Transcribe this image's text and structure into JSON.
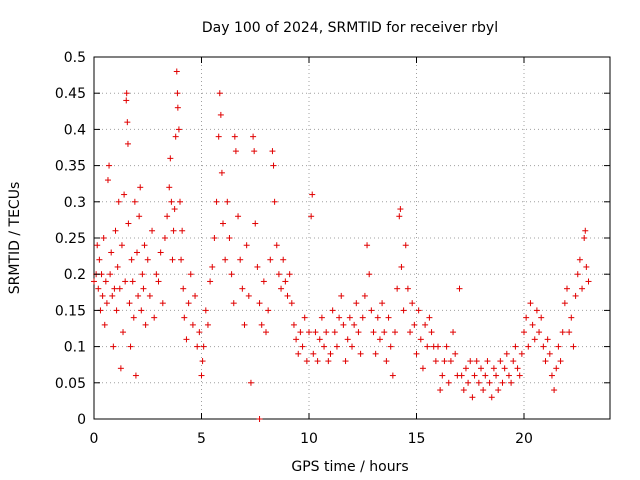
{
  "chart_data": {
    "type": "scatter",
    "title": "Day 100 of 2024, SRMTID for receiver rbyl",
    "xlabel": "GPS time / hours",
    "ylabel": "SRMTID / TECUs",
    "xlim": [
      0,
      24
    ],
    "ylim": [
      0,
      0.5
    ],
    "xticks": [
      0,
      5,
      10,
      15,
      20
    ],
    "yticks": [
      0,
      0.05,
      0.1,
      0.15,
      0.2,
      0.25,
      0.3,
      0.35,
      0.4,
      0.45,
      0.5
    ],
    "grid": true,
    "marker": "+",
    "color": "#e00000",
    "series": [
      {
        "name": "SRMTID",
        "points": [
          [
            0.0,
            0.19
          ],
          [
            0.1,
            0.2
          ],
          [
            0.15,
            0.24
          ],
          [
            0.2,
            0.18
          ],
          [
            0.25,
            0.22
          ],
          [
            0.3,
            0.15
          ],
          [
            0.35,
            0.2
          ],
          [
            0.4,
            0.17
          ],
          [
            0.45,
            0.25
          ],
          [
            0.5,
            0.13
          ],
          [
            0.55,
            0.19
          ],
          [
            0.6,
            0.16
          ],
          [
            0.65,
            0.33
          ],
          [
            0.7,
            0.35
          ],
          [
            0.75,
            0.2
          ],
          [
            0.8,
            0.23
          ],
          [
            0.85,
            0.17
          ],
          [
            0.9,
            0.1
          ],
          [
            0.95,
            0.18
          ],
          [
            1.0,
            0.26
          ],
          [
            1.05,
            0.15
          ],
          [
            1.1,
            0.21
          ],
          [
            1.15,
            0.3
          ],
          [
            1.2,
            0.18
          ],
          [
            1.25,
            0.07
          ],
          [
            1.3,
            0.24
          ],
          [
            1.35,
            0.12
          ],
          [
            1.4,
            0.31
          ],
          [
            1.45,
            0.19
          ],
          [
            1.5,
            0.44
          ],
          [
            1.52,
            0.45
          ],
          [
            1.55,
            0.41
          ],
          [
            1.58,
            0.38
          ],
          [
            1.6,
            0.27
          ],
          [
            1.65,
            0.16
          ],
          [
            1.7,
            0.1
          ],
          [
            1.75,
            0.22
          ],
          [
            1.8,
            0.19
          ],
          [
            1.85,
            0.14
          ],
          [
            1.9,
            0.3
          ],
          [
            1.95,
            0.06
          ],
          [
            2.0,
            0.23
          ],
          [
            2.05,
            0.17
          ],
          [
            2.1,
            0.28
          ],
          [
            2.15,
            0.32
          ],
          [
            2.2,
            0.15
          ],
          [
            2.25,
            0.2
          ],
          [
            2.3,
            0.18
          ],
          [
            2.35,
            0.24
          ],
          [
            2.4,
            0.13
          ],
          [
            2.5,
            0.22
          ],
          [
            2.6,
            0.17
          ],
          [
            2.7,
            0.26
          ],
          [
            2.8,
            0.14
          ],
          [
            2.9,
            0.2
          ],
          [
            3.0,
            0.19
          ],
          [
            3.1,
            0.23
          ],
          [
            3.2,
            0.16
          ],
          [
            3.3,
            0.25
          ],
          [
            3.4,
            0.28
          ],
          [
            3.5,
            0.32
          ],
          [
            3.55,
            0.36
          ],
          [
            3.6,
            0.3
          ],
          [
            3.65,
            0.22
          ],
          [
            3.7,
            0.26
          ],
          [
            3.75,
            0.29
          ],
          [
            3.8,
            0.39
          ],
          [
            3.85,
            0.48
          ],
          [
            3.88,
            0.45
          ],
          [
            3.9,
            0.43
          ],
          [
            3.95,
            0.4
          ],
          [
            4.0,
            0.3
          ],
          [
            4.05,
            0.22
          ],
          [
            4.1,
            0.26
          ],
          [
            4.15,
            0.18
          ],
          [
            4.2,
            0.14
          ],
          [
            4.3,
            0.11
          ],
          [
            4.4,
            0.16
          ],
          [
            4.5,
            0.2
          ],
          [
            4.6,
            0.13
          ],
          [
            4.7,
            0.17
          ],
          [
            4.8,
            0.1
          ],
          [
            4.9,
            0.12
          ],
          [
            5.0,
            0.06
          ],
          [
            5.05,
            0.08
          ],
          [
            5.1,
            0.1
          ],
          [
            5.2,
            0.15
          ],
          [
            5.3,
            0.13
          ],
          [
            5.4,
            0.19
          ],
          [
            5.5,
            0.21
          ],
          [
            5.6,
            0.25
          ],
          [
            5.7,
            0.3
          ],
          [
            5.8,
            0.39
          ],
          [
            5.85,
            0.45
          ],
          [
            5.9,
            0.42
          ],
          [
            5.95,
            0.34
          ],
          [
            6.0,
            0.27
          ],
          [
            6.1,
            0.22
          ],
          [
            6.2,
            0.3
          ],
          [
            6.3,
            0.25
          ],
          [
            6.4,
            0.2
          ],
          [
            6.5,
            0.16
          ],
          [
            6.55,
            0.39
          ],
          [
            6.6,
            0.37
          ],
          [
            6.7,
            0.28
          ],
          [
            6.8,
            0.22
          ],
          [
            6.9,
            0.18
          ],
          [
            7.0,
            0.13
          ],
          [
            7.1,
            0.24
          ],
          [
            7.2,
            0.17
          ],
          [
            7.3,
            0.05
          ],
          [
            7.4,
            0.39
          ],
          [
            7.45,
            0.37
          ],
          [
            7.5,
            0.27
          ],
          [
            7.6,
            0.21
          ],
          [
            7.7,
            0.16
          ],
          [
            7.8,
            0.13
          ],
          [
            7.9,
            0.19
          ],
          [
            8.0,
            0.12
          ],
          [
            8.1,
            0.15
          ],
          [
            8.2,
            0.22
          ],
          [
            8.3,
            0.37
          ],
          [
            8.35,
            0.35
          ],
          [
            8.4,
            0.3
          ],
          [
            8.5,
            0.24
          ],
          [
            8.6,
            0.2
          ],
          [
            8.7,
            0.18
          ],
          [
            8.8,
            0.22
          ],
          [
            8.9,
            0.19
          ],
          [
            9.0,
            0.17
          ],
          [
            9.1,
            0.2
          ],
          [
            9.2,
            0.16
          ],
          [
            9.3,
            0.13
          ],
          [
            9.4,
            0.11
          ],
          [
            9.5,
            0.09
          ],
          [
            9.6,
            0.12
          ],
          [
            9.7,
            0.1
          ],
          [
            9.8,
            0.14
          ],
          [
            9.9,
            0.08
          ],
          [
            10.0,
            0.12
          ],
          [
            10.1,
            0.28
          ],
          [
            10.15,
            0.31
          ],
          [
            10.2,
            0.09
          ],
          [
            10.3,
            0.12
          ],
          [
            10.4,
            0.08
          ],
          [
            10.5,
            0.11
          ],
          [
            10.6,
            0.14
          ],
          [
            10.7,
            0.1
          ],
          [
            10.8,
            0.12
          ],
          [
            10.9,
            0.08
          ],
          [
            11.0,
            0.09
          ],
          [
            11.1,
            0.15
          ],
          [
            11.2,
            0.12
          ],
          [
            11.3,
            0.1
          ],
          [
            11.4,
            0.14
          ],
          [
            11.5,
            0.17
          ],
          [
            11.6,
            0.13
          ],
          [
            11.7,
            0.08
          ],
          [
            11.8,
            0.11
          ],
          [
            11.9,
            0.14
          ],
          [
            12.0,
            0.1
          ],
          [
            12.1,
            0.13
          ],
          [
            12.2,
            0.16
          ],
          [
            12.3,
            0.12
          ],
          [
            12.4,
            0.09
          ],
          [
            12.5,
            0.14
          ],
          [
            12.6,
            0.17
          ],
          [
            12.7,
            0.24
          ],
          [
            12.8,
            0.2
          ],
          [
            12.9,
            0.15
          ],
          [
            13.0,
            0.12
          ],
          [
            13.1,
            0.09
          ],
          [
            13.2,
            0.14
          ],
          [
            13.3,
            0.11
          ],
          [
            13.4,
            0.16
          ],
          [
            13.5,
            0.12
          ],
          [
            13.6,
            0.08
          ],
          [
            13.7,
            0.14
          ],
          [
            13.8,
            0.1
          ],
          [
            13.9,
            0.06
          ],
          [
            14.0,
            0.12
          ],
          [
            14.1,
            0.18
          ],
          [
            14.2,
            0.28
          ],
          [
            14.25,
            0.29
          ],
          [
            14.3,
            0.21
          ],
          [
            14.4,
            0.15
          ],
          [
            14.5,
            0.24
          ],
          [
            14.6,
            0.18
          ],
          [
            14.7,
            0.12
          ],
          [
            14.8,
            0.16
          ],
          [
            14.9,
            0.13
          ],
          [
            15.0,
            0.09
          ],
          [
            15.1,
            0.15
          ],
          [
            15.2,
            0.11
          ],
          [
            15.3,
            0.07
          ],
          [
            15.4,
            0.13
          ],
          [
            15.5,
            0.1
          ],
          [
            15.6,
            0.14
          ],
          [
            15.7,
            0.12
          ],
          [
            15.8,
            0.1
          ],
          [
            15.9,
            0.08
          ],
          [
            16.0,
            0.1
          ],
          [
            16.1,
            0.04
          ],
          [
            16.2,
            0.06
          ],
          [
            16.3,
            0.08
          ],
          [
            16.4,
            0.1
          ],
          [
            16.5,
            0.05
          ],
          [
            16.6,
            0.08
          ],
          [
            16.7,
            0.12
          ],
          [
            16.8,
            0.09
          ],
          [
            16.9,
            0.06
          ],
          [
            17.0,
            0.18
          ],
          [
            17.1,
            0.06
          ],
          [
            17.2,
            0.04
          ],
          [
            17.3,
            0.07
          ],
          [
            17.4,
            0.05
          ],
          [
            17.5,
            0.08
          ],
          [
            17.6,
            0.03
          ],
          [
            17.7,
            0.06
          ],
          [
            17.8,
            0.08
          ],
          [
            17.9,
            0.05
          ],
          [
            18.0,
            0.07
          ],
          [
            18.1,
            0.04
          ],
          [
            18.2,
            0.06
          ],
          [
            18.3,
            0.08
          ],
          [
            18.4,
            0.05
          ],
          [
            18.5,
            0.03
          ],
          [
            18.6,
            0.07
          ],
          [
            18.7,
            0.06
          ],
          [
            18.8,
            0.04
          ],
          [
            18.9,
            0.08
          ],
          [
            19.0,
            0.05
          ],
          [
            19.1,
            0.07
          ],
          [
            19.2,
            0.09
          ],
          [
            19.3,
            0.06
          ],
          [
            19.4,
            0.05
          ],
          [
            19.5,
            0.08
          ],
          [
            19.6,
            0.1
          ],
          [
            19.7,
            0.07
          ],
          [
            19.8,
            0.06
          ],
          [
            19.9,
            0.09
          ],
          [
            20.0,
            0.12
          ],
          [
            20.1,
            0.14
          ],
          [
            20.2,
            0.1
          ],
          [
            20.3,
            0.16
          ],
          [
            20.4,
            0.13
          ],
          [
            20.5,
            0.11
          ],
          [
            20.6,
            0.15
          ],
          [
            20.7,
            0.12
          ],
          [
            20.8,
            0.14
          ],
          [
            20.9,
            0.1
          ],
          [
            21.0,
            0.08
          ],
          [
            21.1,
            0.11
          ],
          [
            21.2,
            0.09
          ],
          [
            21.3,
            0.06
          ],
          [
            21.4,
            0.04
          ],
          [
            21.5,
            0.07
          ],
          [
            21.6,
            0.1
          ],
          [
            21.7,
            0.08
          ],
          [
            21.8,
            0.12
          ],
          [
            21.9,
            0.16
          ],
          [
            22.0,
            0.18
          ],
          [
            22.1,
            0.12
          ],
          [
            22.2,
            0.14
          ],
          [
            22.3,
            0.1
          ],
          [
            22.4,
            0.17
          ],
          [
            22.5,
            0.2
          ],
          [
            22.6,
            0.22
          ],
          [
            22.7,
            0.18
          ],
          [
            22.8,
            0.25
          ],
          [
            22.85,
            0.26
          ],
          [
            22.9,
            0.21
          ],
          [
            23.0,
            0.19
          ],
          [
            7.7,
            0.0
          ]
        ]
      }
    ]
  }
}
